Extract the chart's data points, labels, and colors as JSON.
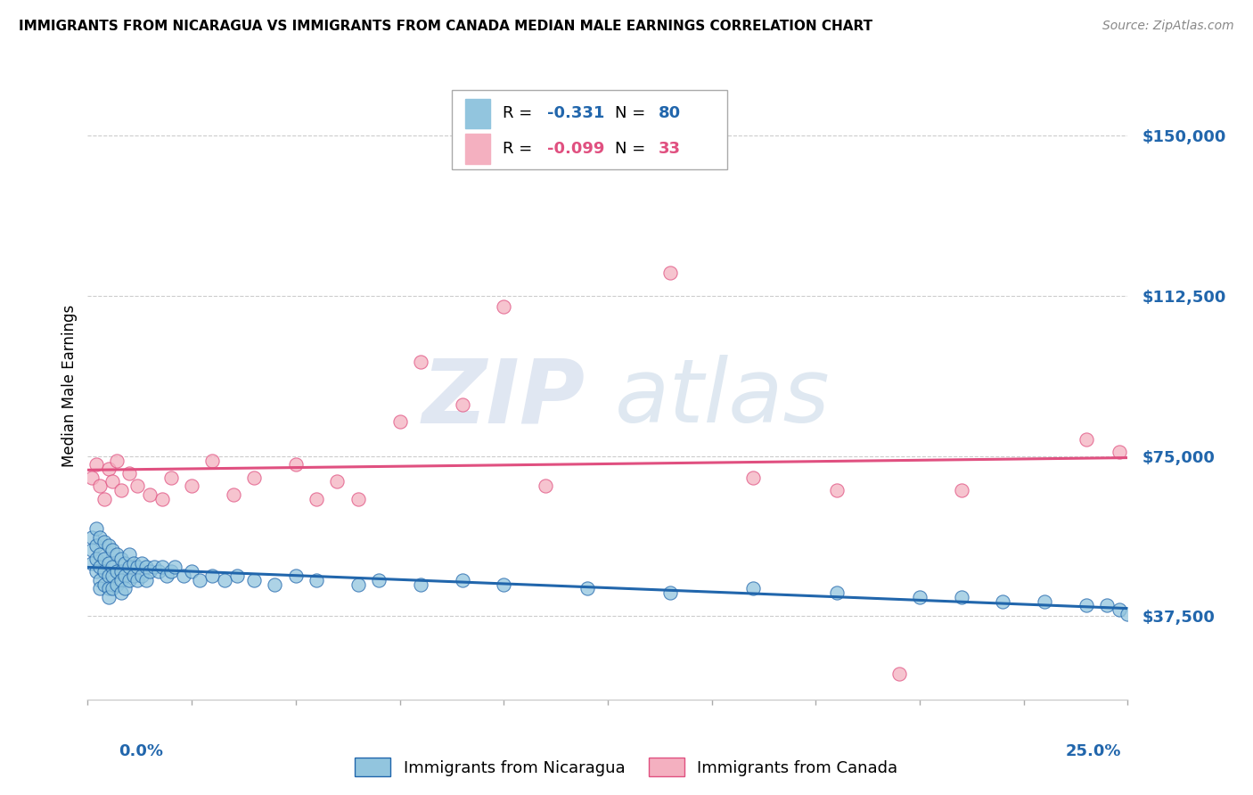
{
  "title": "IMMIGRANTS FROM NICARAGUA VS IMMIGRANTS FROM CANADA MEDIAN MALE EARNINGS CORRELATION CHART",
  "source": "Source: ZipAtlas.com",
  "ylabel": "Median Male Earnings",
  "ytick_vals": [
    37500,
    75000,
    112500,
    150000
  ],
  "ytick_labels": [
    "$37,500",
    "$75,000",
    "$112,500",
    "$150,000"
  ],
  "xmin": 0.0,
  "xmax": 0.25,
  "ymin": 18000,
  "ymax": 165000,
  "color_nicaragua": "#92c5de",
  "color_canada": "#f4b0c0",
  "trendline_nicaragua": "#2166ac",
  "trendline_canada": "#e05080",
  "legend_r1_val": "-0.331",
  "legend_n1_val": "80",
  "legend_r2_val": "-0.099",
  "legend_n2_val": "33",
  "nicaragua_x": [
    0.001,
    0.001,
    0.001,
    0.002,
    0.002,
    0.002,
    0.002,
    0.003,
    0.003,
    0.003,
    0.003,
    0.003,
    0.004,
    0.004,
    0.004,
    0.004,
    0.005,
    0.005,
    0.005,
    0.005,
    0.005,
    0.006,
    0.006,
    0.006,
    0.006,
    0.007,
    0.007,
    0.007,
    0.008,
    0.008,
    0.008,
    0.008,
    0.009,
    0.009,
    0.009,
    0.01,
    0.01,
    0.01,
    0.011,
    0.011,
    0.012,
    0.012,
    0.013,
    0.013,
    0.014,
    0.014,
    0.015,
    0.016,
    0.017,
    0.018,
    0.019,
    0.02,
    0.021,
    0.023,
    0.025,
    0.027,
    0.03,
    0.033,
    0.036,
    0.04,
    0.045,
    0.05,
    0.055,
    0.065,
    0.07,
    0.08,
    0.09,
    0.1,
    0.12,
    0.14,
    0.16,
    0.18,
    0.2,
    0.21,
    0.22,
    0.23,
    0.24,
    0.245,
    0.248,
    0.25
  ],
  "nicaragua_y": [
    56000,
    53000,
    50000,
    58000,
    54000,
    51000,
    48000,
    56000,
    52000,
    49000,
    46000,
    44000,
    55000,
    51000,
    48000,
    45000,
    54000,
    50000,
    47000,
    44000,
    42000,
    53000,
    49000,
    47000,
    44000,
    52000,
    48000,
    45000,
    51000,
    48000,
    46000,
    43000,
    50000,
    47000,
    44000,
    52000,
    49000,
    46000,
    50000,
    47000,
    49000,
    46000,
    50000,
    47000,
    49000,
    46000,
    48000,
    49000,
    48000,
    49000,
    47000,
    48000,
    49000,
    47000,
    48000,
    46000,
    47000,
    46000,
    47000,
    46000,
    45000,
    47000,
    46000,
    45000,
    46000,
    45000,
    46000,
    45000,
    44000,
    43000,
    44000,
    43000,
    42000,
    42000,
    41000,
    41000,
    40000,
    40000,
    39000,
    38000
  ],
  "canada_x": [
    0.001,
    0.002,
    0.003,
    0.004,
    0.005,
    0.006,
    0.007,
    0.008,
    0.01,
    0.012,
    0.015,
    0.018,
    0.02,
    0.025,
    0.03,
    0.035,
    0.04,
    0.05,
    0.055,
    0.06,
    0.065,
    0.075,
    0.08,
    0.09,
    0.1,
    0.11,
    0.14,
    0.16,
    0.18,
    0.195,
    0.21,
    0.24,
    0.248
  ],
  "canada_y": [
    70000,
    73000,
    68000,
    65000,
    72000,
    69000,
    74000,
    67000,
    71000,
    68000,
    66000,
    65000,
    70000,
    68000,
    74000,
    66000,
    70000,
    73000,
    65000,
    69000,
    65000,
    83000,
    97000,
    87000,
    110000,
    68000,
    118000,
    70000,
    67000,
    24000,
    67000,
    79000,
    76000
  ]
}
